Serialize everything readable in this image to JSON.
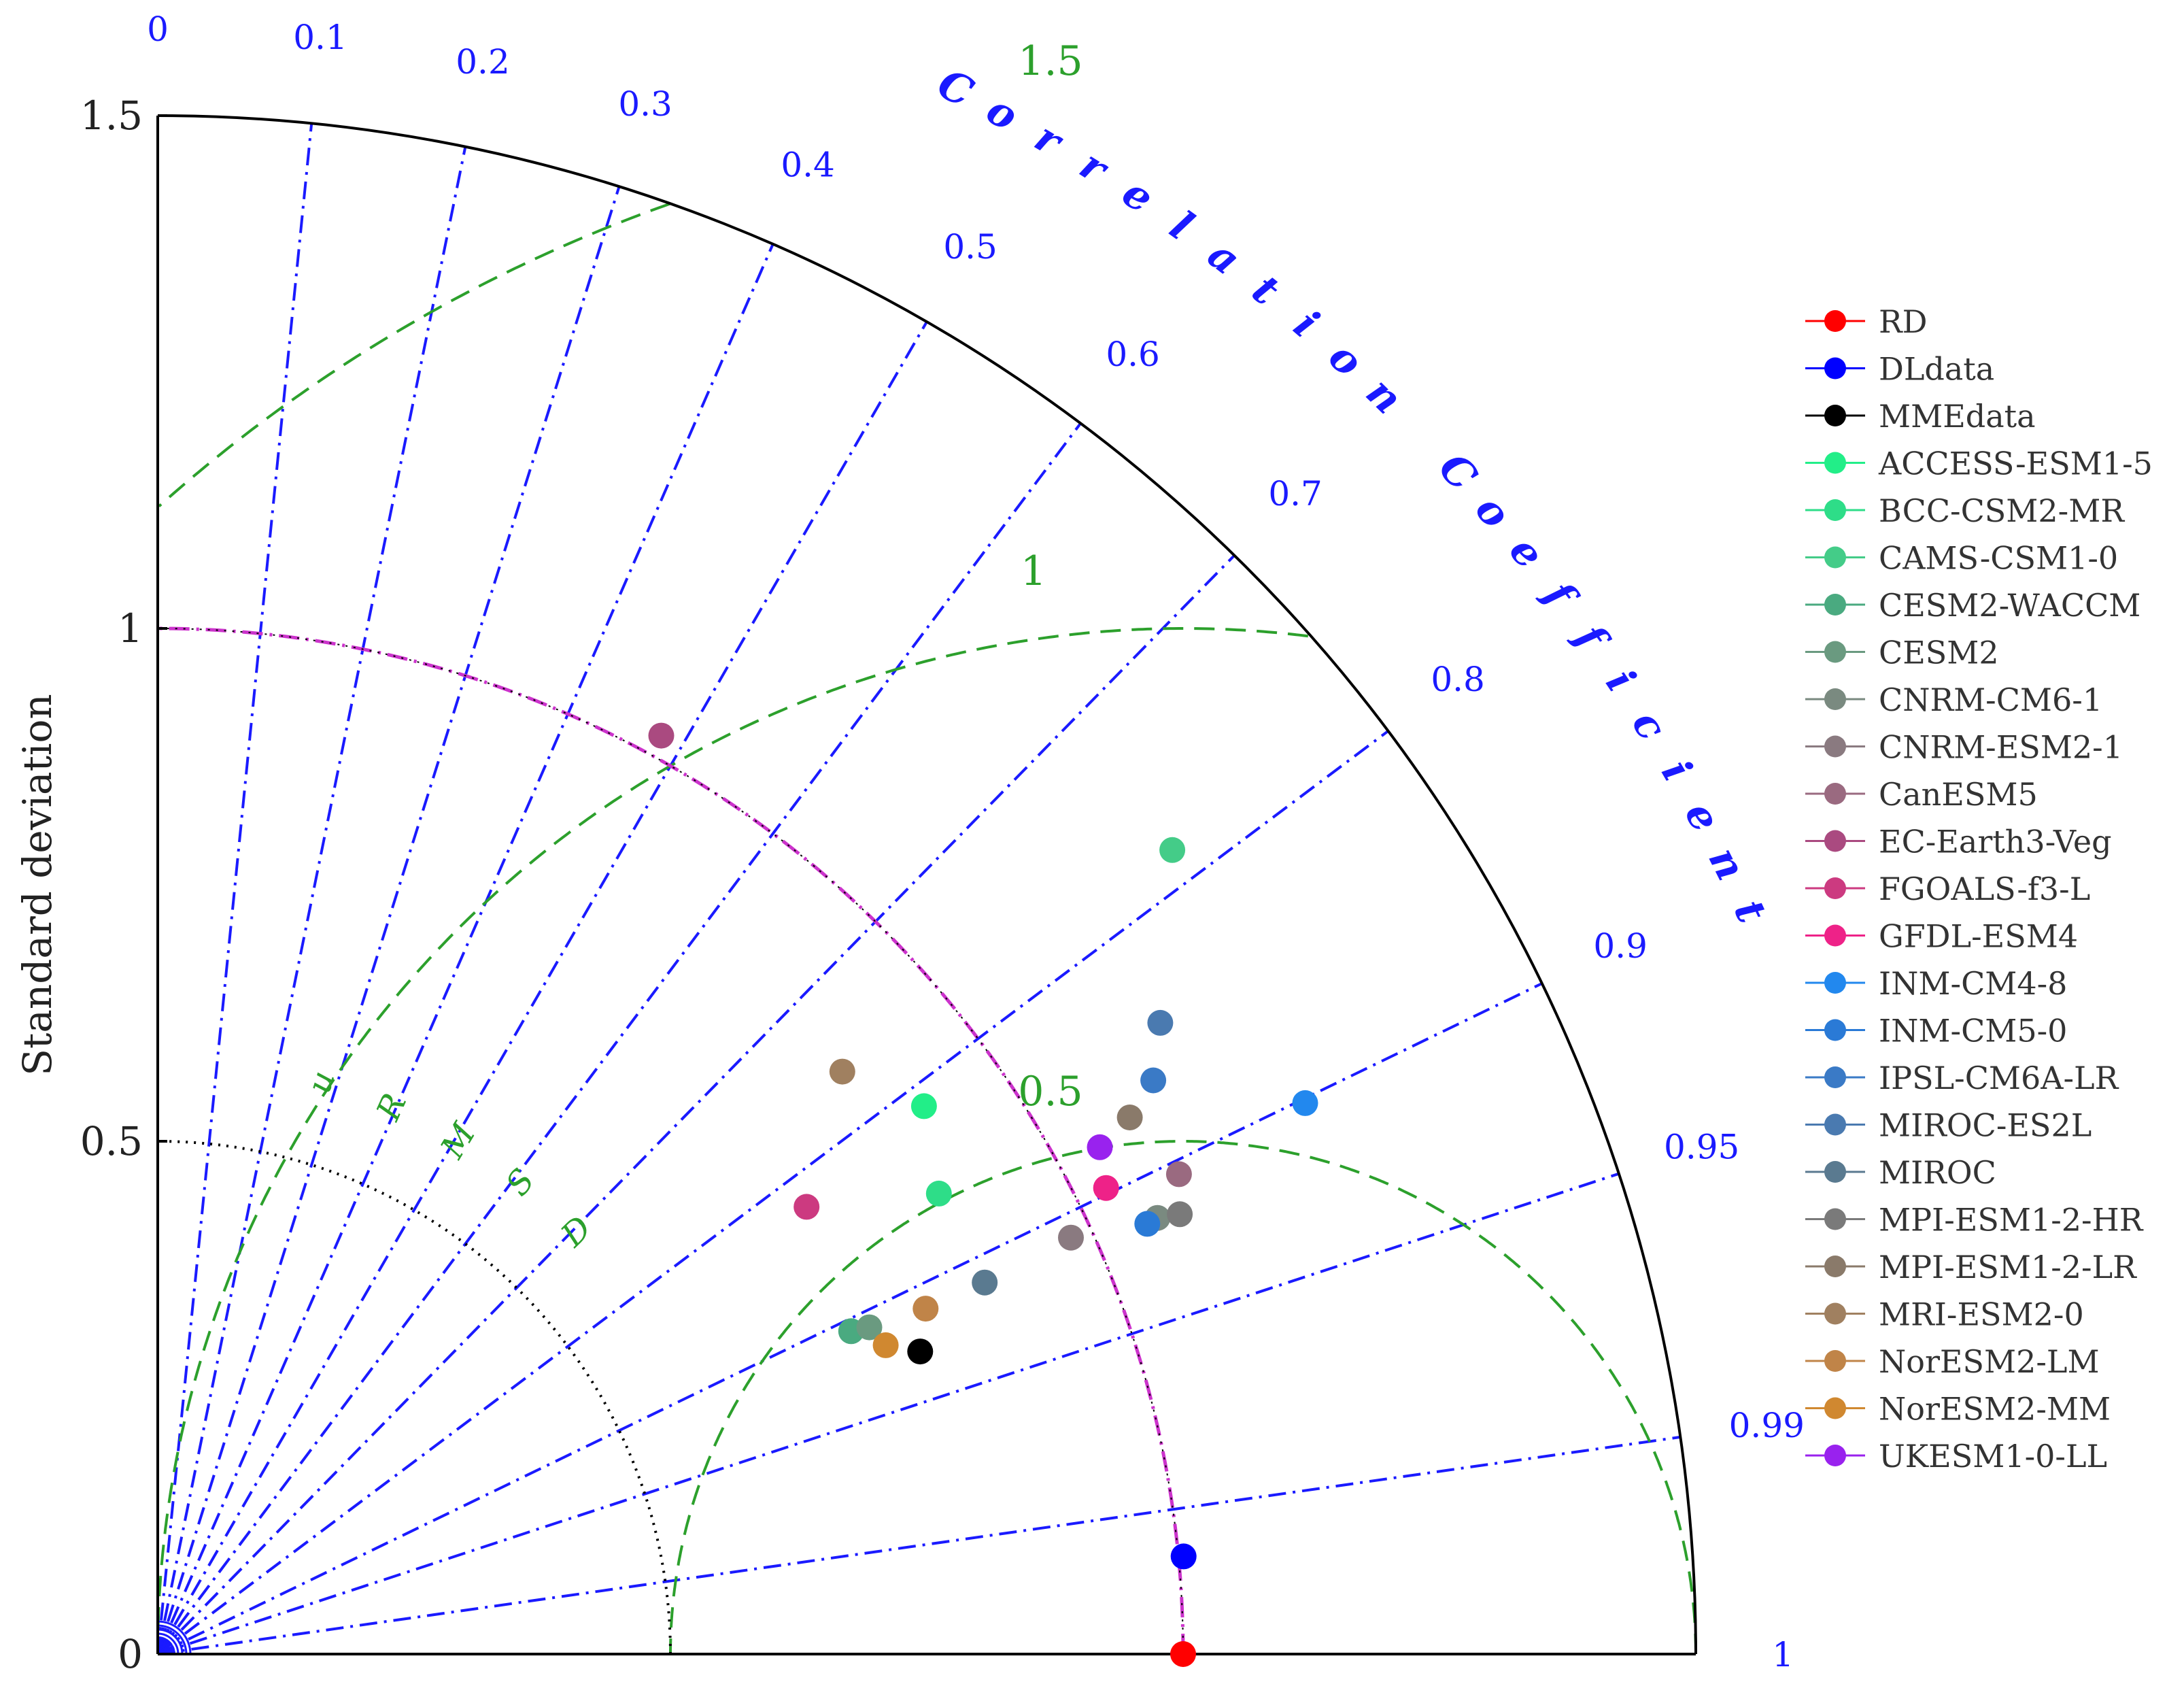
{
  "chart_data": {
    "type": "scatter",
    "subtype": "taylor-diagram",
    "ylabel": "Standard deviation",
    "std_axis": {
      "max": 1.5,
      "ticks": [
        0,
        0.5,
        1,
        1.5
      ],
      "tick_labels": [
        "0",
        "0.5",
        "1",
        "1.5"
      ]
    },
    "correlation_axis": {
      "title": "Correlation Coefficient",
      "title_color": "#1a1aff",
      "ticks": [
        0,
        0.1,
        0.2,
        0.3,
        0.4,
        0.5,
        0.6,
        0.7,
        0.8,
        0.9,
        0.95,
        0.99,
        1
      ],
      "tick_labels": [
        "0",
        "0.1",
        "0.2",
        "0.3",
        "0.4",
        "0.5",
        "0.6",
        "0.7",
        "0.8",
        "0.9",
        "0.95",
        "0.99",
        "1"
      ],
      "line_color": "#1a1aff"
    },
    "rmsd": {
      "title": "uRMSD",
      "color": "#2ca02c",
      "contours": [
        0.5,
        1,
        1.5
      ],
      "contour_labels": [
        "0.5",
        "1",
        "1.5"
      ]
    },
    "reference_std": 1.0,
    "reference_arc_color": "#cc33cc",
    "inner_arc": {
      "value": 0.5,
      "color": "#000000"
    },
    "legend_placement": "right",
    "series": [
      {
        "name": "RD",
        "color": "#ff0000",
        "std": 1.0,
        "corr": 1.0
      },
      {
        "name": "DLdata",
        "color": "#0000ff",
        "std": 1.005,
        "corr": 0.9955
      },
      {
        "name": "MMEdata",
        "color": "#000000",
        "std": 0.8,
        "corr": 0.9295
      },
      {
        "name": "ACCESS-ESM1-5",
        "color": "#22ee88",
        "std": 0.9186,
        "corr": 0.8135
      },
      {
        "name": "BCC-CSM2-MR",
        "color": "#2edd88",
        "std": 0.8843,
        "corr": 0.8615
      },
      {
        "name": "CAMS-CSM1-0",
        "color": "#44cc88",
        "std": 1.2624,
        "corr": 0.7838
      },
      {
        "name": "CESM2-WACCM",
        "color": "#4aaa80",
        "std": 0.7459,
        "corr": 0.9066
      },
      {
        "name": "CESM2",
        "color": "#6a9a80",
        "std": 0.7636,
        "corr": 0.9088
      },
      {
        "name": "CNRM-CM6-1",
        "color": "#7a8a80",
        "std": 1.0637,
        "corr": 0.9166
      },
      {
        "name": "CNRM-ESM2-1",
        "color": "#8a7a80",
        "std": 0.9788,
        "corr": 0.9099
      },
      {
        "name": "CanESM5",
        "color": "#9a6a80",
        "std": 1.1004,
        "corr": 0.9051
      },
      {
        "name": "EC-Earth3-Veg",
        "color": "#aa4a80",
        "std": 1.0213,
        "corr": 0.4808
      },
      {
        "name": "FGOALS-f3-L",
        "color": "#cc3a80",
        "std": 0.7685,
        "corr": 0.8234
      },
      {
        "name": "GFDL-ESM4",
        "color": "#ee2288",
        "std": 1.0305,
        "corr": 0.8975
      },
      {
        "name": "INM-CM4-8",
        "color": "#2288ee",
        "std": 1.2413,
        "corr": 0.9015
      },
      {
        "name": "INM-CM5-0",
        "color": "#2a7ad6",
        "std": 1.0523,
        "corr": 0.9171
      },
      {
        "name": "IPSL-CM6A-LR",
        "color": "#3a7ac6",
        "std": 1.1205,
        "corr": 0.8665
      },
      {
        "name": "MIROC-ES2L",
        "color": "#4a7ab0",
        "std": 1.1553,
        "corr": 0.8463
      },
      {
        "name": "MIROC",
        "color": "#5a7a90",
        "std": 0.8841,
        "corr": 0.9122
      },
      {
        "name": "MPI-ESM1-2-HR",
        "color": "#7a7a7a",
        "std": 1.0851,
        "corr": 0.9186
      },
      {
        "name": "MPI-ESM1-2-LR",
        "color": "#8a7a6a",
        "std": 1.0828,
        "corr": 0.8755
      },
      {
        "name": "MRI-ESM2-0",
        "color": "#a08060",
        "std": 0.8765,
        "corr": 0.7617
      },
      {
        "name": "NorESM2-LM",
        "color": "#c08448",
        "std": 0.8211,
        "corr": 0.912
      },
      {
        "name": "NorESM2-MM",
        "color": "#d08830",
        "std": 0.7712,
        "corr": 0.9206
      },
      {
        "name": "UKESM1-0-LL",
        "color": "#9922ee",
        "std": 1.0432,
        "corr": 0.8807
      }
    ]
  }
}
